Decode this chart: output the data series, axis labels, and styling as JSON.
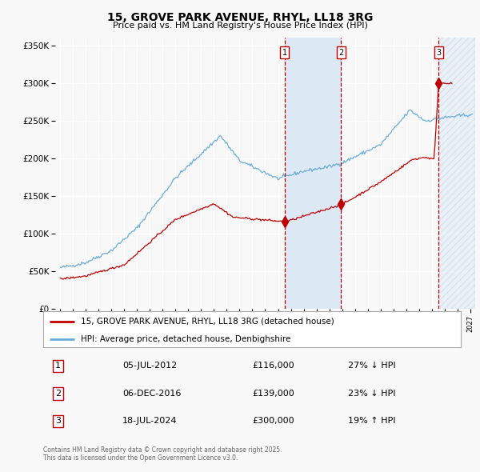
{
  "title": "15, GROVE PARK AVENUE, RHYL, LL18 3RG",
  "subtitle": "Price paid vs. HM Land Registry's House Price Index (HPI)",
  "legend_line1": "15, GROVE PARK AVENUE, RHYL, LL18 3RG (detached house)",
  "legend_line2": "HPI: Average price, detached house, Denbighshire",
  "transactions": [
    {
      "num": 1,
      "date": "05-JUL-2012",
      "price": 116000,
      "hpi_diff": "27% ↓ HPI",
      "x_year": 2012.51
    },
    {
      "num": 2,
      "date": "06-DEC-2016",
      "price": 139000,
      "hpi_diff": "23% ↓ HPI",
      "x_year": 2016.93
    },
    {
      "num": 3,
      "date": "18-JUL-2024",
      "price": 300000,
      "hpi_diff": "19% ↑ HPI",
      "x_year": 2024.54
    }
  ],
  "footer": "Contains HM Land Registry data © Crown copyright and database right 2025.\nThis data is licensed under the Open Government Licence v3.0.",
  "hpi_color": "#6aaddc",
  "price_color": "#c00000",
  "background_color": "#f8f8f8",
  "plot_bg_color": "#f8f8f8",
  "ylim": [
    0,
    360000
  ],
  "xlim_start": 1994.6,
  "xlim_end": 2027.4,
  "grid_color": "#ffffff",
  "shaded_region_color": "#dce9f5",
  "hatch_color": "#dce9f5"
}
